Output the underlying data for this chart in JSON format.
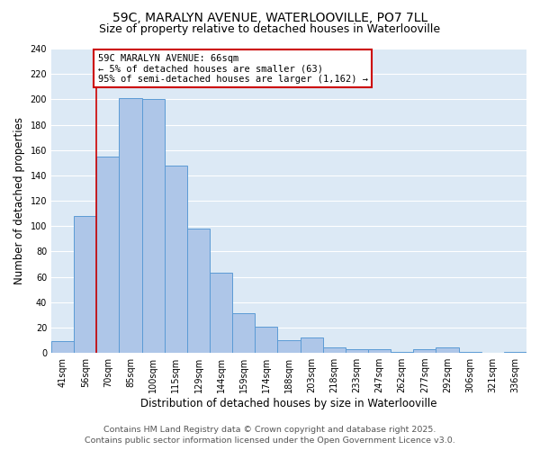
{
  "title1": "59C, MARALYN AVENUE, WATERLOOVILLE, PO7 7LL",
  "title2": "Size of property relative to detached houses in Waterlooville",
  "xlabel": "Distribution of detached houses by size in Waterlooville",
  "ylabel": "Number of detached properties",
  "categories": [
    "41sqm",
    "56sqm",
    "70sqm",
    "85sqm",
    "100sqm",
    "115sqm",
    "129sqm",
    "144sqm",
    "159sqm",
    "174sqm",
    "188sqm",
    "203sqm",
    "218sqm",
    "233sqm",
    "247sqm",
    "262sqm",
    "277sqm",
    "292sqm",
    "306sqm",
    "321sqm",
    "336sqm"
  ],
  "values": [
    9,
    108,
    155,
    201,
    200,
    148,
    98,
    63,
    31,
    21,
    10,
    12,
    4,
    3,
    3,
    1,
    3,
    4,
    1,
    0,
    1
  ],
  "bar_color": "#aec6e8",
  "bar_edge_color": "#5b9bd5",
  "vline_x": 1.5,
  "vline_color": "#cc0000",
  "annotation_text": "59C MARALYN AVENUE: 66sqm\n← 5% of detached houses are smaller (63)\n95% of semi-detached houses are larger (1,162) →",
  "annotation_box_color": "#ffffff",
  "annotation_box_edge": "#cc0000",
  "ylim": [
    0,
    240
  ],
  "yticks": [
    0,
    20,
    40,
    60,
    80,
    100,
    120,
    140,
    160,
    180,
    200,
    220,
    240
  ],
  "footer1": "Contains HM Land Registry data © Crown copyright and database right 2025.",
  "footer2": "Contains public sector information licensed under the Open Government Licence v3.0.",
  "bg_color": "#dce9f5",
  "title_fontsize": 10,
  "subtitle_fontsize": 9,
  "axis_label_fontsize": 8.5,
  "tick_fontsize": 7,
  "footer_fontsize": 6.8,
  "annotation_fontsize": 7.5
}
